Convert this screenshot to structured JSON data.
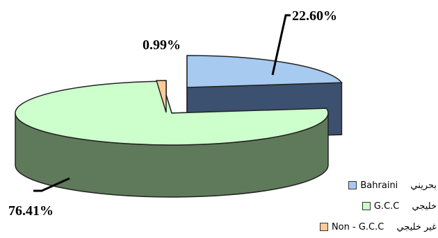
{
  "chart_data": {
    "type": "pie",
    "series": [
      {
        "name": "Bahraini",
        "name_ar": "بحريني",
        "value": 22.6,
        "label": "22.60%",
        "color": "#a6caf0",
        "side_color": "#3c5070"
      },
      {
        "name": "G.C.C",
        "name_ar": "خليجي",
        "value": 76.41,
        "label": "76.41%",
        "color": "#ccffcc",
        "side_color": "#5f7a5a"
      },
      {
        "name": "Non - G.C.C",
        "name_ar": "غير خليجي",
        "value": 0.99,
        "label": "0.99%",
        "color": "#ffcc99",
        "side_color": "#7a5f48"
      }
    ],
    "legend_position": "bottom-right",
    "style": "3d-exploded"
  }
}
